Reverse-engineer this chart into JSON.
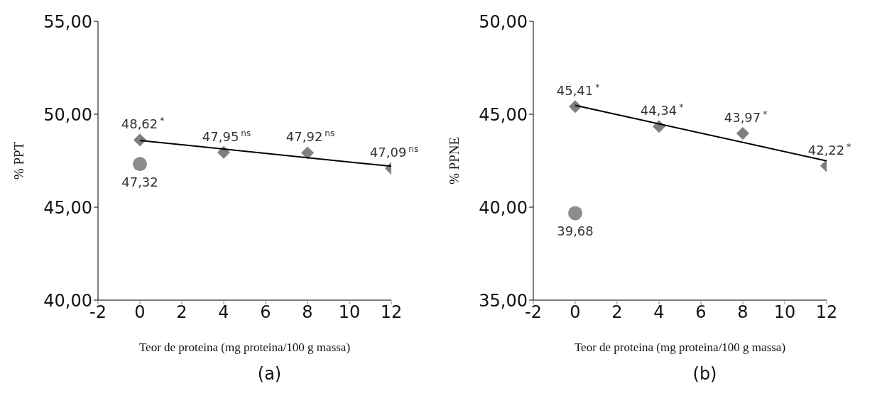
{
  "chart_data": [
    {
      "type": "scatter",
      "xlabel": "Teor de proteina (mg  proteina/100 g massa)",
      "ylabel": "%  PPT",
      "annotations": [
        "(a)"
      ],
      "xlim": [
        -2,
        12
      ],
      "xticks": [
        -2,
        0,
        2,
        4,
        6,
        8,
        10,
        12
      ],
      "ylim": [
        40,
        55
      ],
      "yticks": [
        {
          "value": 40,
          "label": "40,00"
        },
        {
          "value": 45,
          "label": "45,00"
        },
        {
          "value": 50,
          "label": "50,00"
        },
        {
          "value": 55,
          "label": "55,00"
        }
      ],
      "series": [
        {
          "type": "scatter",
          "marker": "diamond",
          "color": "#7f7f7f",
          "x": [
            0,
            4,
            8,
            12
          ],
          "values": [
            48.62,
            47.95,
            47.92,
            47.09
          ],
          "value_labels": [
            "48,62$^{*}$",
            "47,95$^{ns}$",
            "47,92$^{ns}$",
            "47,09$^{ns}$"
          ]
        },
        {
          "type": "scatter",
          "marker": "circle",
          "color": "#8c8c8c",
          "x": [
            0
          ],
          "values": [
            47.32
          ],
          "value_labels": [
            "47,32"
          ]
        },
        {
          "type": "line",
          "marker": "none",
          "color": "#000000",
          "x": [
            0,
            12
          ],
          "values": [
            48.59,
            47.2
          ]
        }
      ]
    },
    {
      "type": "scatter",
      "xlabel": "Teor de proteina (mg  proteina/100 g massa)",
      "ylabel": "%  PPNE",
      "annotations": [
        "(b)"
      ],
      "xlim": [
        -2,
        12
      ],
      "xticks": [
        -2,
        0,
        2,
        4,
        6,
        8,
        10,
        12
      ],
      "ylim": [
        35,
        50
      ],
      "yticks": [
        {
          "value": 35,
          "label": "35,00"
        },
        {
          "value": 40,
          "label": "40,00"
        },
        {
          "value": 45,
          "label": "45,00"
        },
        {
          "value": 50,
          "label": "50,00"
        }
      ],
      "series": [
        {
          "type": "scatter",
          "marker": "diamond",
          "color": "#7f7f7f",
          "x": [
            0,
            4,
            8,
            12
          ],
          "values": [
            45.41,
            44.34,
            43.97,
            42.22
          ],
          "value_labels": [
            "45,41$^{*}$",
            "44,34$^{*}$",
            "43,97$^{*}$",
            "42,22$^{*}$"
          ]
        },
        {
          "type": "scatter",
          "marker": "circle",
          "color": "#8c8c8c",
          "x": [
            0
          ],
          "values": [
            39.68
          ],
          "value_labels": [
            "39,68"
          ]
        },
        {
          "type": "line",
          "marker": "none",
          "color": "#000000",
          "x": [
            0,
            12
          ],
          "values": [
            45.48,
            42.49
          ]
        }
      ]
    }
  ]
}
